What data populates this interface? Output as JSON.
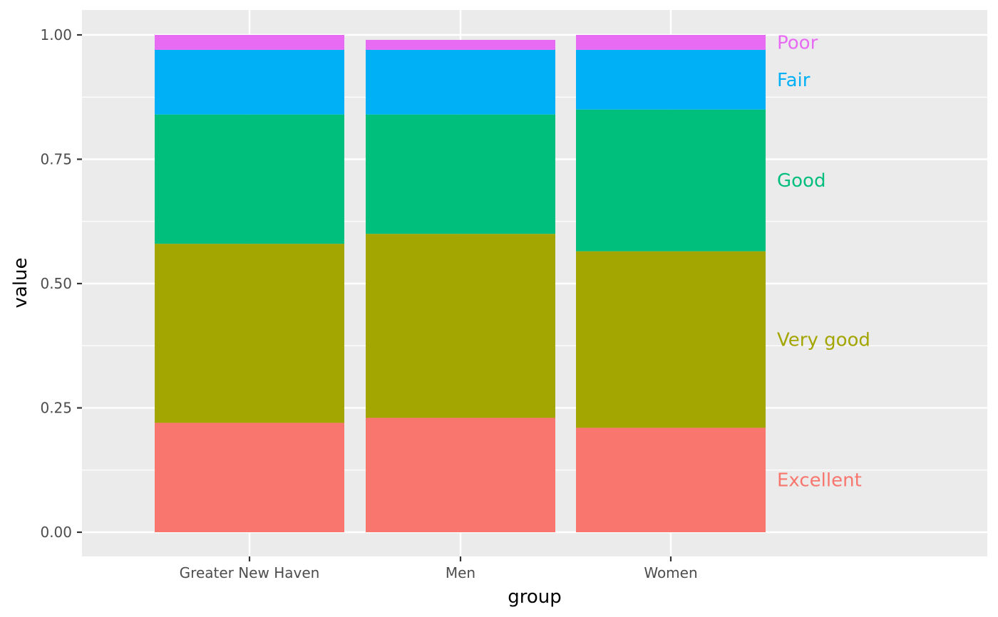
{
  "chart_data": {
    "type": "bar",
    "stacked": true,
    "xlabel": "group",
    "ylabel": "value",
    "categories": [
      "Greater New Haven",
      "Men",
      "Women"
    ],
    "ylim": [
      -0.05,
      1.05
    ],
    "yticks": [
      0,
      0.25,
      0.5,
      0.75,
      1.0
    ],
    "ytick_labels": [
      "0.00",
      "0.25",
      "0.50",
      "0.75",
      "1.00"
    ],
    "grid": true,
    "legend": "none",
    "direct_labels": "right of last bar",
    "series": [
      {
        "name": "Excellent",
        "color": "#F8766D",
        "values": [
          0.22,
          0.23,
          0.21
        ]
      },
      {
        "name": "Very good",
        "color": "#A3A500",
        "values": [
          0.36,
          0.37,
          0.355
        ]
      },
      {
        "name": "Good",
        "color": "#00BF7D",
        "values": [
          0.26,
          0.24,
          0.285
        ]
      },
      {
        "name": "Fair",
        "color": "#00B0F6",
        "values": [
          0.13,
          0.13,
          0.12
        ]
      },
      {
        "name": "Poor",
        "color": "#E76BF3",
        "values": [
          0.03,
          0.02,
          0.03
        ]
      }
    ]
  }
}
